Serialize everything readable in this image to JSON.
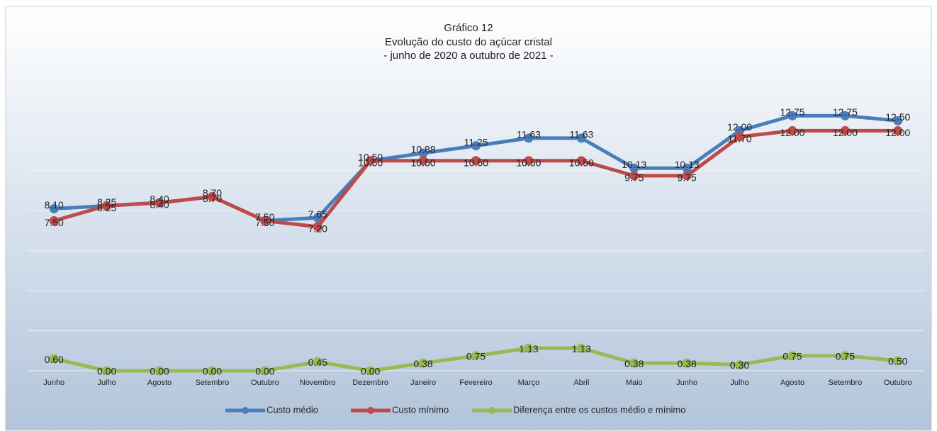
{
  "chart_data": {
    "type": "line",
    "title": "Gráfico 12",
    "subtitle": [
      "Evolução do custo do açúcar cristal",
      "- junho de 2020 a outubro de 2021 -"
    ],
    "categories": [
      "Junho",
      "Julho",
      "Agosto",
      "Setembro",
      "Outubro",
      "Novembro",
      "Dezembro",
      "Janeiro",
      "Fevereiro",
      "Março",
      "Abril",
      "Maio",
      "Junho",
      "Julho",
      "Agosto",
      "Setembro",
      "Outubro"
    ],
    "series": [
      {
        "name": "Custo médio",
        "color": "#4a7ebb",
        "values": [
          8.1,
          8.25,
          8.4,
          8.7,
          7.5,
          7.65,
          10.5,
          10.88,
          11.25,
          11.63,
          11.63,
          10.13,
          10.13,
          12,
          12.75,
          12.75,
          12.5
        ],
        "value_labels": [
          "8.10",
          "8.25",
          "8.40",
          "8.70",
          "7.50",
          "7.65",
          "10.50",
          "10.88",
          "11.25",
          "11.63",
          "11.63",
          "10.13",
          "10.13",
          "12.00",
          "12.75",
          "12.75",
          "12.50"
        ]
      },
      {
        "name": "Custo mínimo",
        "color": "#be4b48",
        "values": [
          7.5,
          8.25,
          8.4,
          8.7,
          7.5,
          7.2,
          10.5,
          10.5,
          10.5,
          10.5,
          10.5,
          9.75,
          9.75,
          11.7,
          12,
          12,
          12
        ],
        "value_labels": [
          "7.50",
          "8.25",
          "8.40",
          "8.70",
          "7.50",
          "7.20",
          "10.50",
          "10.50",
          "10.50",
          "10.50",
          "10.50",
          "9.75",
          "9.75",
          "11.70",
          "12.00",
          "12.00",
          "12.00"
        ]
      },
      {
        "name": "Diferença entre os custos médio e mínimo",
        "color": "#98b954",
        "values": [
          0.6,
          0,
          0,
          0,
          0,
          0.45,
          0,
          0.38,
          0.75,
          1.13,
          1.13,
          0.38,
          0.38,
          0.3,
          0.75,
          0.75,
          0.5
        ],
        "value_labels": [
          "0.60",
          "0.00",
          "0.00",
          "0.00",
          "0.00",
          "0.45",
          "0.00",
          "0.38",
          "0.75",
          "1.13",
          "1.13",
          "0.38",
          "0.38",
          "0.30",
          "0.75",
          "0.75",
          "0.50"
        ]
      }
    ],
    "ylim": [
      0,
      14
    ],
    "yticks": [
      0,
      2,
      4,
      6,
      8,
      10,
      12,
      14
    ],
    "grid": true,
    "legend": "bottom"
  }
}
